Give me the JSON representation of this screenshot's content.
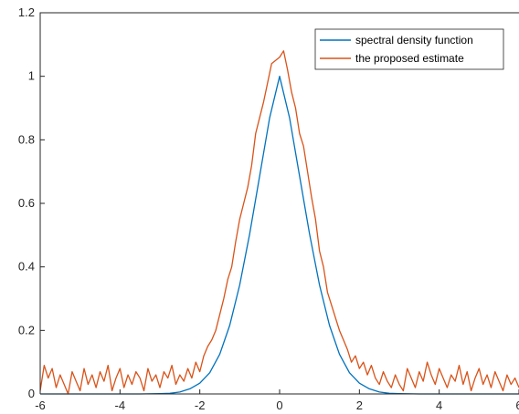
{
  "chart_data": {
    "type": "line",
    "title": "",
    "xlabel": "",
    "ylabel": "",
    "xlim": [
      -6,
      6
    ],
    "ylim": [
      0,
      1.2
    ],
    "x_ticks": [
      -6,
      -4,
      -2,
      0,
      2,
      4,
      6
    ],
    "x_tick_labels": [
      "-6",
      "-4",
      "-2",
      "0",
      "2",
      "4",
      "6"
    ],
    "y_ticks": [
      0,
      0.2,
      0.4,
      0.6,
      0.8,
      1,
      1.2
    ],
    "y_tick_labels": [
      "0",
      "0.2",
      "0.4",
      "0.6",
      "0.8",
      "1",
      "1.2"
    ],
    "grid": false,
    "legend_position": "top-right",
    "series": [
      {
        "name": "spectral density function",
        "color": "#0072BD",
        "x": [
          -6.0,
          -5.5,
          -5.0,
          -4.5,
          -4.0,
          -3.5,
          -3.0,
          -2.75,
          -2.5,
          -2.25,
          -2.0,
          -1.75,
          -1.5,
          -1.25,
          -1.0,
          -0.75,
          -0.5,
          -0.25,
          0.0,
          0.25,
          0.5,
          0.75,
          1.0,
          1.25,
          1.5,
          1.75,
          2.0,
          2.25,
          2.5,
          2.75,
          3.0,
          3.5,
          4.0,
          4.5,
          5.0,
          5.5,
          6.0
        ],
        "y": [
          0.0,
          0.0,
          0.0,
          0.0,
          0.0,
          0.0,
          0.001,
          0.002,
          0.006,
          0.016,
          0.034,
          0.067,
          0.125,
          0.216,
          0.343,
          0.504,
          0.686,
          0.869,
          1.0,
          0.869,
          0.686,
          0.504,
          0.343,
          0.216,
          0.125,
          0.067,
          0.034,
          0.016,
          0.006,
          0.002,
          0.001,
          0.0,
          0.0,
          0.0,
          0.0,
          0.0,
          0.0
        ]
      },
      {
        "name": "the proposed estimate",
        "color": "#D95319",
        "x": [
          -6.0,
          -5.9,
          -5.8,
          -5.7,
          -5.6,
          -5.5,
          -5.4,
          -5.3,
          -5.2,
          -5.1,
          -5.0,
          -4.9,
          -4.8,
          -4.7,
          -4.6,
          -4.5,
          -4.4,
          -4.3,
          -4.2,
          -4.1,
          -4.0,
          -3.9,
          -3.8,
          -3.7,
          -3.6,
          -3.5,
          -3.4,
          -3.3,
          -3.2,
          -3.1,
          -3.0,
          -2.9,
          -2.8,
          -2.7,
          -2.6,
          -2.5,
          -2.4,
          -2.3,
          -2.2,
          -2.1,
          -2.0,
          -1.9,
          -1.8,
          -1.7,
          -1.6,
          -1.5,
          -1.4,
          -1.3,
          -1.2,
          -1.1,
          -1.0,
          -0.9,
          -0.8,
          -0.7,
          -0.6,
          -0.5,
          -0.4,
          -0.3,
          -0.2,
          -0.1,
          0.0,
          0.1,
          0.2,
          0.3,
          0.4,
          0.5,
          0.6,
          0.7,
          0.8,
          0.9,
          1.0,
          1.1,
          1.2,
          1.3,
          1.4,
          1.5,
          1.6,
          1.7,
          1.8,
          1.9,
          2.0,
          2.1,
          2.2,
          2.3,
          2.4,
          2.5,
          2.6,
          2.7,
          2.8,
          2.9,
          3.0,
          3.1,
          3.2,
          3.3,
          3.4,
          3.5,
          3.6,
          3.7,
          3.8,
          3.9,
          4.0,
          4.1,
          4.2,
          4.3,
          4.4,
          4.5,
          4.6,
          4.7,
          4.8,
          4.9,
          5.0,
          5.1,
          5.2,
          5.3,
          5.4,
          5.5,
          5.6,
          5.7,
          5.8,
          5.9,
          6.0
        ],
        "y": [
          0.01,
          0.09,
          0.05,
          0.08,
          0.02,
          0.06,
          0.03,
          0.0,
          0.07,
          0.04,
          0.01,
          0.08,
          0.03,
          0.06,
          0.02,
          0.07,
          0.04,
          0.09,
          0.01,
          0.05,
          0.08,
          0.02,
          0.06,
          0.03,
          0.07,
          0.05,
          0.01,
          0.08,
          0.04,
          0.06,
          0.02,
          0.07,
          0.05,
          0.09,
          0.03,
          0.06,
          0.04,
          0.08,
          0.05,
          0.1,
          0.07,
          0.12,
          0.15,
          0.17,
          0.2,
          0.25,
          0.3,
          0.36,
          0.4,
          0.48,
          0.55,
          0.6,
          0.65,
          0.72,
          0.82,
          0.87,
          0.92,
          0.98,
          1.04,
          1.05,
          1.06,
          1.08,
          1.02,
          0.95,
          0.9,
          0.82,
          0.78,
          0.7,
          0.62,
          0.55,
          0.45,
          0.4,
          0.32,
          0.28,
          0.24,
          0.2,
          0.17,
          0.14,
          0.1,
          0.12,
          0.08,
          0.1,
          0.06,
          0.09,
          0.05,
          0.03,
          0.07,
          0.04,
          0.02,
          0.06,
          0.03,
          0.01,
          0.08,
          0.05,
          0.02,
          0.07,
          0.04,
          0.1,
          0.06,
          0.03,
          0.08,
          0.05,
          0.02,
          0.06,
          0.04,
          0.09,
          0.03,
          0.07,
          0.01,
          0.05,
          0.08,
          0.03,
          0.06,
          0.02,
          0.07,
          0.04,
          0.01,
          0.06,
          0.03,
          0.05,
          0.02
        ]
      }
    ]
  }
}
